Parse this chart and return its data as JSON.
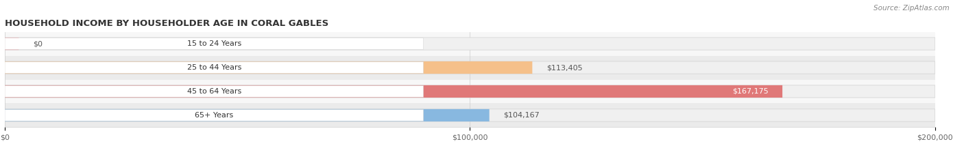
{
  "title": "HOUSEHOLD INCOME BY HOUSEHOLDER AGE IN CORAL GABLES",
  "source": "Source: ZipAtlas.com",
  "categories": [
    "15 to 24 Years",
    "25 to 44 Years",
    "45 to 64 Years",
    "65+ Years"
  ],
  "values": [
    0,
    113405,
    167175,
    104167
  ],
  "bar_colors": [
    "#f4a0a8",
    "#f5c08a",
    "#e07878",
    "#88b8e0"
  ],
  "bar_bg_color": "#f0f0f0",
  "label_texts": [
    "$0",
    "$113,405",
    "$167,175",
    "$104,167"
  ],
  "value_label_inside": [
    false,
    false,
    true,
    false
  ],
  "x_ticks": [
    0,
    100000,
    200000
  ],
  "x_tick_labels": [
    "$0",
    "$100,000",
    "$200,000"
  ],
  "xlim": [
    0,
    200000
  ],
  "figsize": [
    14.06,
    2.33
  ],
  "dpi": 100,
  "title_fontsize": 9.5,
  "bar_height": 0.52,
  "label_fontsize": 8,
  "ylabel_fontsize": 8,
  "tick_fontsize": 8,
  "source_fontsize": 7.5
}
